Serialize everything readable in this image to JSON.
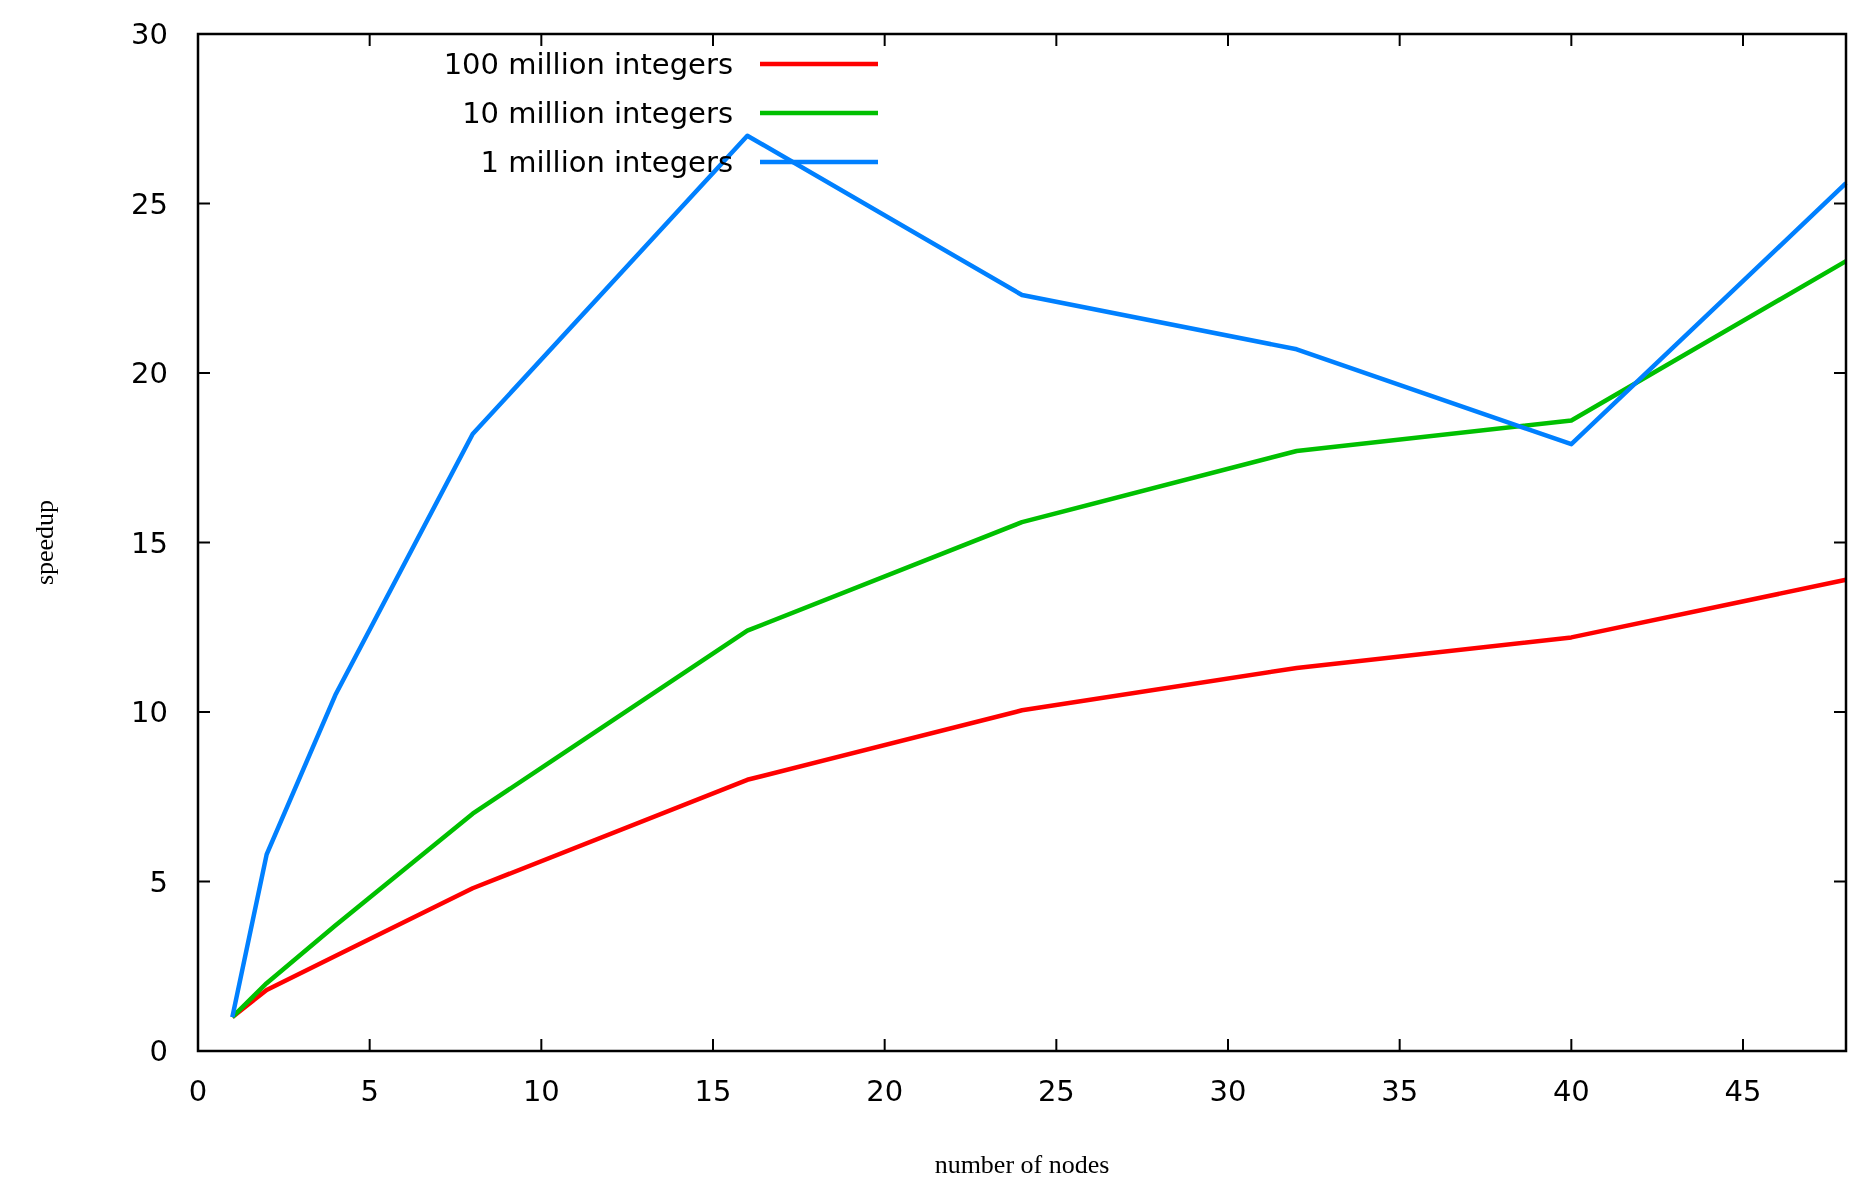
{
  "chart_data": {
    "type": "line",
    "xlabel": "number of nodes",
    "ylabel": "speedup",
    "x": [
      1,
      2,
      4,
      8,
      16,
      24,
      32,
      40,
      48
    ],
    "series": [
      {
        "name": "100 million integers",
        "color": "#ff0000",
        "values": [
          1,
          1.8,
          2.8,
          4.8,
          8.0,
          10.05,
          11.3,
          12.2,
          13.9
        ]
      },
      {
        "name": "10 million integers",
        "color": "#00c000",
        "values": [
          1,
          2.0,
          3.7,
          7.0,
          12.4,
          15.6,
          17.7,
          18.6,
          23.3
        ]
      },
      {
        "name": "1 million integers",
        "color": "#0080ff",
        "values": [
          1,
          5.8,
          10.5,
          18.2,
          27.0,
          22.3,
          20.7,
          17.9,
          25.6
        ]
      }
    ],
    "xlim": [
      0,
      48
    ],
    "ylim": [
      0,
      30
    ],
    "xticks": [
      0,
      5,
      10,
      15,
      20,
      25,
      30,
      35,
      40,
      45
    ],
    "yticks": [
      0,
      5,
      10,
      15,
      20,
      25,
      30
    ],
    "legend": "top left",
    "grid": false,
    "marker": "none",
    "line_style": "solid"
  }
}
